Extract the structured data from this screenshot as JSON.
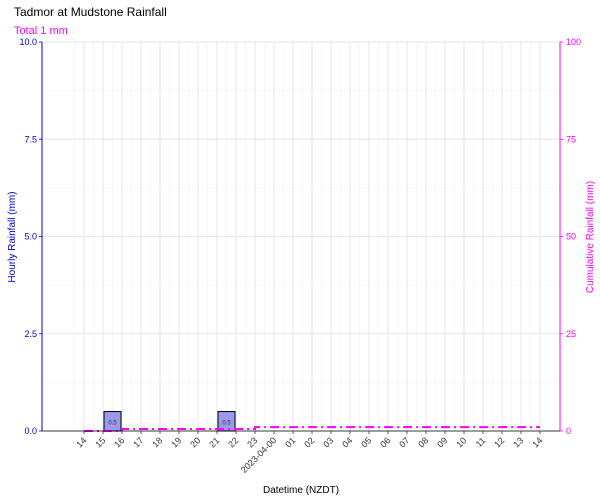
{
  "chart_data": {
    "type": "bar",
    "title": "Tadmor at Mudstone Rainfall",
    "subtitle": "Total 1 mm",
    "xlabel": "Datetime (NZDT)",
    "ylabel": "Hourly Rainfall (mm)",
    "y2label": "Cumulative Rainfall (mm)",
    "ylim": [
      0,
      10
    ],
    "y2lim": [
      0,
      100
    ],
    "y_ticks": [
      "0.0",
      "2.5",
      "5.0",
      "7.5",
      "10.0"
    ],
    "y2_ticks": [
      "0",
      "25",
      "50",
      "75",
      "100"
    ],
    "x_ticks": [
      "14",
      "15",
      "16",
      "17",
      "18",
      "19",
      "20",
      "21",
      "22",
      "23",
      "2023-04-00",
      "01",
      "02",
      "03",
      "04",
      "05",
      "06",
      "07",
      "08",
      "09",
      "10",
      "11",
      "12",
      "13",
      "14"
    ],
    "grid": true,
    "colors": {
      "primary_axis": "#0000cc",
      "secondary_axis": "#ff00ff",
      "bar_fill": "#9999ee",
      "bar_stroke": "#000000",
      "cumulative_line": "#ff00ff"
    },
    "series": [
      {
        "type": "bar",
        "x": [
          "16",
          "22"
        ],
        "values": [
          0.5,
          0.5
        ],
        "labels": [
          "0.5",
          "0.5"
        ]
      },
      {
        "type": "line",
        "axis": "secondary",
        "x": [
          "14",
          "16",
          "17",
          "22",
          "23",
          "14"
        ],
        "values": [
          0,
          0.5,
          0.5,
          0.5,
          1,
          1
        ]
      }
    ]
  }
}
